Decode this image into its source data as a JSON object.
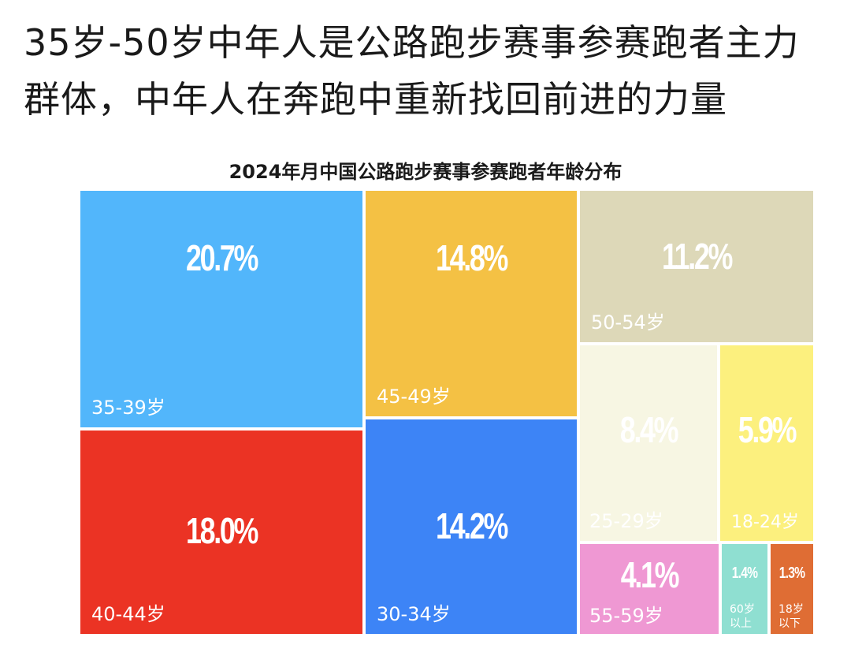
{
  "headline": "35岁-50岁中年人是公路跑步赛事参赛跑者主力群体，中年人在奔跑中重新找回前进的力量",
  "chart_data": {
    "type": "treemap",
    "title": "2024年月中国公路跑步赛事参赛跑者年龄分布",
    "unit": "%",
    "items": [
      {
        "label": "35-39岁",
        "value": 20.7,
        "value_label": "20.7%",
        "color": "#52b6fb"
      },
      {
        "label": "40-44岁",
        "value": 18.0,
        "value_label": "18.0%",
        "color": "#eb3324"
      },
      {
        "label": "45-49岁",
        "value": 14.8,
        "value_label": "14.8%",
        "color": "#f4c144"
      },
      {
        "label": "30-34岁",
        "value": 14.2,
        "value_label": "14.2%",
        "color": "#3d84f6"
      },
      {
        "label": "50-54岁",
        "value": 11.2,
        "value_label": "11.2%",
        "color": "#ddd8b8"
      },
      {
        "label": "25-29岁",
        "value": 8.4,
        "value_label": "8.4%",
        "color": "#f7f6e3"
      },
      {
        "label": "18-24岁",
        "value": 5.9,
        "value_label": "5.9%",
        "color": "#fcf07e"
      },
      {
        "label": "55-59岁",
        "value": 4.1,
        "value_label": "4.1%",
        "color": "#ef98d3"
      },
      {
        "label": "60岁以上",
        "value": 1.4,
        "value_label": "1.4%",
        "color": "#8fdfd1"
      },
      {
        "label": "18岁以下",
        "value": 1.3,
        "value_label": "1.3%",
        "color": "#df6d34"
      }
    ]
  }
}
